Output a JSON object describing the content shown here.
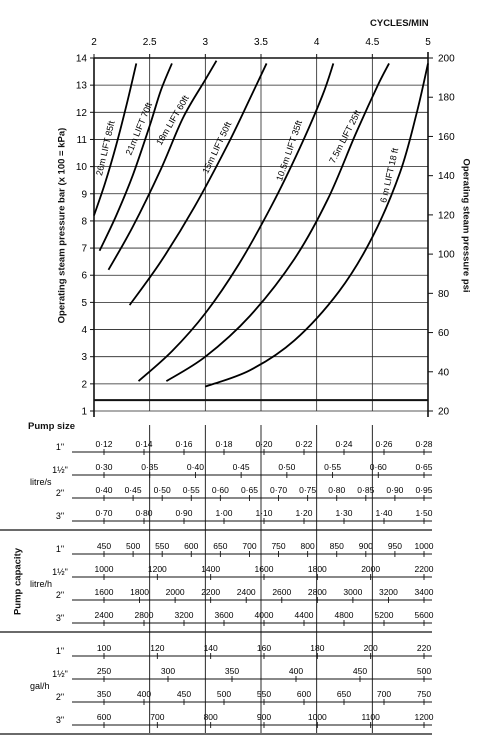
{
  "chart_data": {
    "type": "line",
    "title": "CYCLES/MIN",
    "x": {
      "label": "CYCLES/MIN",
      "range": [
        2,
        5
      ],
      "ticks": [
        "2",
        "2.5",
        "3",
        "3.5",
        "4",
        "4.5",
        "5"
      ]
    },
    "y_left": {
      "label": "Operating steam pressure bar (x 100 = kPa)",
      "range": [
        1,
        14
      ],
      "ticks": [
        "1",
        "2",
        "3",
        "4",
        "5",
        "6",
        "7",
        "8",
        "9",
        "10",
        "11",
        "12",
        "13",
        "14"
      ]
    },
    "y_right": {
      "label": "Operating steam pressure psi",
      "range": [
        20,
        200
      ],
      "ticks": [
        "20",
        "40",
        "60",
        "80",
        "100",
        "120",
        "140",
        "160",
        "180",
        "200"
      ]
    },
    "grid": true,
    "series": [
      {
        "name": "26m LIFT 85ft",
        "points": [
          [
            2.0,
            8.2
          ],
          [
            2.1,
            9.4
          ],
          [
            2.2,
            10.8
          ],
          [
            2.3,
            12.4
          ],
          [
            2.38,
            13.8
          ]
        ]
      },
      {
        "name": "21m LIFT 70ft",
        "points": [
          [
            2.05,
            6.9
          ],
          [
            2.2,
            8.2
          ],
          [
            2.35,
            9.7
          ],
          [
            2.5,
            11.5
          ],
          [
            2.6,
            12.8
          ],
          [
            2.7,
            13.8
          ]
        ]
      },
      {
        "name": "18m LIFT 60ft",
        "points": [
          [
            2.13,
            6.2
          ],
          [
            2.35,
            7.8
          ],
          [
            2.6,
            9.9
          ],
          [
            2.8,
            11.8
          ],
          [
            3.0,
            13.2
          ],
          [
            3.1,
            13.9
          ]
        ]
      },
      {
        "name": "15m LIFT 50ft",
        "points": [
          [
            2.32,
            4.9
          ],
          [
            2.6,
            6.5
          ],
          [
            2.9,
            8.5
          ],
          [
            3.2,
            10.8
          ],
          [
            3.4,
            12.5
          ],
          [
            3.55,
            13.8
          ]
        ]
      },
      {
        "name": "10.5m LIFT 35ft",
        "points": [
          [
            2.4,
            2.1
          ],
          [
            2.7,
            3.2
          ],
          [
            3.0,
            4.6
          ],
          [
            3.3,
            6.4
          ],
          [
            3.6,
            8.6
          ],
          [
            3.85,
            10.7
          ],
          [
            4.05,
            12.6
          ],
          [
            4.15,
            13.8
          ]
        ]
      },
      {
        "name": "7.5m LIFT 25ft",
        "points": [
          [
            2.65,
            2.1
          ],
          [
            3.0,
            3.0
          ],
          [
            3.4,
            4.5
          ],
          [
            3.8,
            6.6
          ],
          [
            4.1,
            8.8
          ],
          [
            4.35,
            11.2
          ],
          [
            4.55,
            13.0
          ],
          [
            4.65,
            13.8
          ]
        ]
      },
      {
        "name": "6 m LIFT 18 ft",
        "points": [
          [
            3.0,
            1.9
          ],
          [
            3.4,
            2.5
          ],
          [
            3.8,
            3.6
          ],
          [
            4.2,
            5.4
          ],
          [
            4.5,
            7.4
          ],
          [
            4.75,
            9.8
          ],
          [
            4.9,
            12.0
          ],
          [
            5.0,
            13.8
          ]
        ]
      }
    ],
    "baseline": {
      "y": 1.4
    }
  },
  "pump_size": {
    "title": "Pump size",
    "sizes": [
      "1\"",
      "1½\"",
      "2\"",
      "3\""
    ],
    "section_label": "Pump capacity"
  },
  "capacity": [
    {
      "unit": "litre/s",
      "rows": [
        [
          "0·12",
          "0·14",
          "0·16",
          "0·18",
          "0·20",
          "0·22",
          "0·24",
          "0·26",
          "0·28"
        ],
        [
          "0·30",
          "0·35",
          "0·40",
          "0·45",
          "0·50",
          "0·55",
          "0·60",
          "0·65"
        ],
        [
          "0·40",
          "0·45",
          "0·50",
          "0·55",
          "0·60",
          "0·65",
          "0·70",
          "0·75",
          "0·80",
          "0·85",
          "0·90",
          "0·95"
        ],
        [
          "0·70",
          "0·80",
          "0·90",
          "1·00",
          "1·10",
          "1·20",
          "1·30",
          "1·40",
          "1·50"
        ]
      ]
    },
    {
      "unit": "litre/h",
      "rows": [
        [
          "450",
          "500",
          "550",
          "600",
          "650",
          "700",
          "750",
          "800",
          "850",
          "900",
          "950",
          "1000"
        ],
        [
          "1000",
          "1200",
          "1400",
          "1600",
          "1800",
          "2000",
          "2200"
        ],
        [
          "1600",
          "1800",
          "2000",
          "2200",
          "2400",
          "2600",
          "2800",
          "3000",
          "3200",
          "3400"
        ],
        [
          "2400",
          "2800",
          "3200",
          "3600",
          "4000",
          "4400",
          "4800",
          "5200",
          "5600"
        ]
      ]
    },
    {
      "unit": "gal/h",
      "rows": [
        [
          "100",
          "120",
          "140",
          "160",
          "180",
          "200",
          "220"
        ],
        [
          "250",
          "300",
          "350",
          "400",
          "450",
          "500"
        ],
        [
          "350",
          "400",
          "450",
          "500",
          "550",
          "600",
          "650",
          "700",
          "750"
        ],
        [
          "600",
          "700",
          "800",
          "900",
          "1000",
          "1100",
          "1200"
        ]
      ]
    }
  ]
}
